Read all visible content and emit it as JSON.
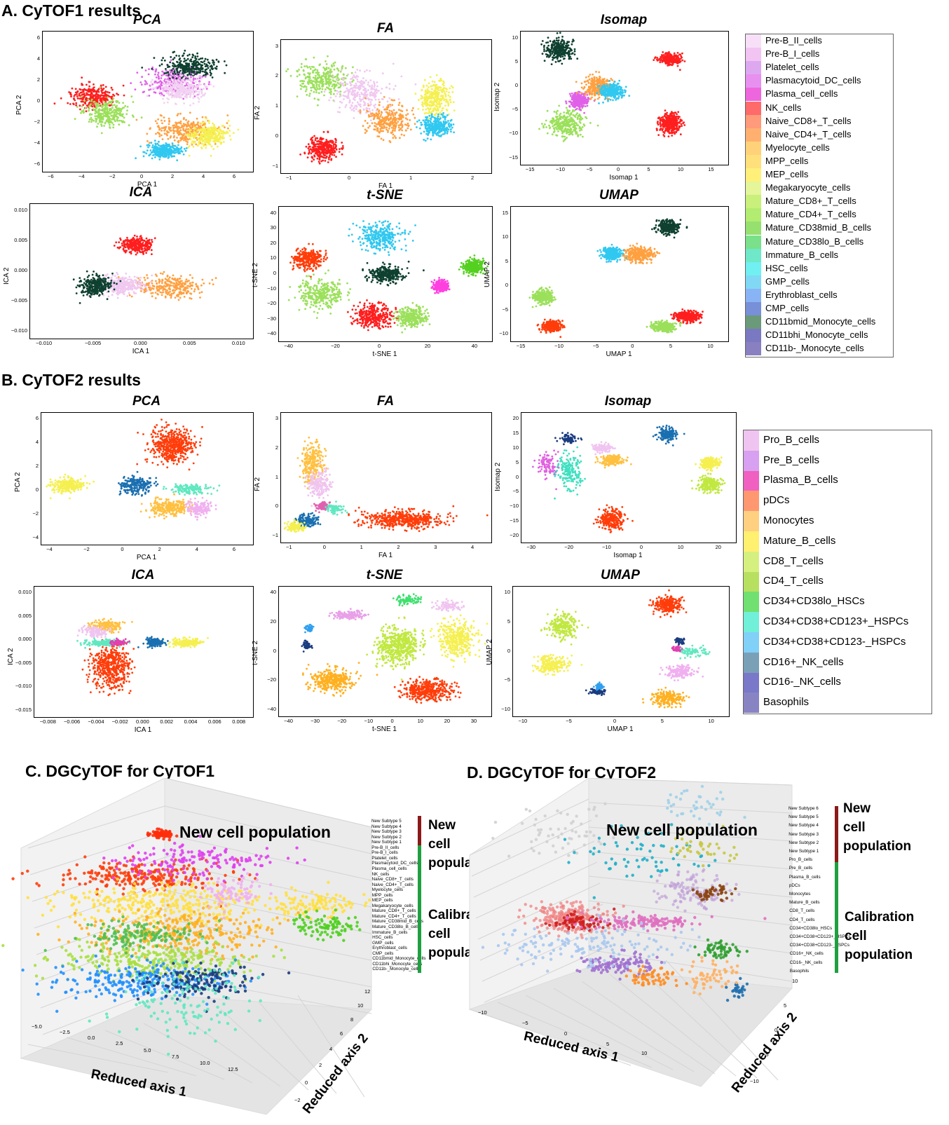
{
  "sections": {
    "a": "A. CyTOF1 results",
    "b": "B. CyTOF2 results",
    "c": "C. DGCyTOF for CyTOF1",
    "d": "D. DGCyTOF for CyTOF2"
  },
  "legend1": {
    "items": [
      "Pre-B_II_cells",
      "Pre-B_I_cells",
      "Platelet_cells",
      "Plasmacytoid_DC_cells",
      "Plasma_cell_cells",
      "NK_cells",
      "Naive_CD8+_T_cells",
      "Naive_CD4+_T_cells",
      "Myelocyte_cells",
      "MPP_cells",
      "MEP_cells",
      "Megakaryocyte_cells",
      "Mature_CD8+_T_cells",
      "Mature_CD4+_T_cells",
      "Mature_CD38mid_B_cells",
      "Mature_CD38lo_B_cells",
      "Immature_B_cells",
      "HSC_cells",
      "GMP_cells",
      "Erythroblast_cells",
      "CMP_cells",
      "CD11bmid_Monocyte_cells",
      "CD11bhi_Monocyte_cells",
      "CD11b-_Monocyte_cells"
    ],
    "colors": [
      "#f7e0f7",
      "#f2c4f2",
      "#dda8f0",
      "#e890f0",
      "#ee66dd",
      "#ff6a6a",
      "#ff9a7a",
      "#ffb070",
      "#ffd27a",
      "#ffe07a",
      "#fff07a",
      "#e4f59a",
      "#c8f07a",
      "#b2ec70",
      "#96e070",
      "#7ae08a",
      "#6ee8c8",
      "#70f0f0",
      "#80d8f5",
      "#88b4f5",
      "#7890d8",
      "#6a9a7a",
      "#7a78c0",
      "#8880c0"
    ]
  },
  "legend2": {
    "items": [
      "Pro_B_cells",
      "Pre_B_cells",
      "Plasma_B_cells",
      "pDCs",
      "Monocytes",
      "Mature_B_cells",
      "CD8_T_cells",
      "CD4_T_cells",
      "CD34+CD38lo_HSCs",
      "CD34+CD38+CD123+_HSPCs",
      "CD34+CD38+CD123-_HSPCs",
      "CD16+_NK_cells",
      "CD16-_NK_cells",
      "Basophils"
    ],
    "colors": [
      "#f0c4f0",
      "#d8a0f0",
      "#f060c0",
      "#ff9870",
      "#ffd080",
      "#fff070",
      "#d6f080",
      "#b8e060",
      "#70e070",
      "#70f0d8",
      "#80d0f8",
      "#7aa0b8",
      "#7a78c8",
      "#8884c4"
    ]
  },
  "panelsA": [
    {
      "title": "PCA",
      "xlabel": "PCA 1",
      "ylabel": "PCA 2",
      "xticks": [
        "−6",
        "−4",
        "−2",
        "0",
        "2",
        "4",
        "6"
      ],
      "yticks": [
        "6",
        "4",
        "2",
        "0",
        "−2",
        "−4",
        "−6"
      ]
    },
    {
      "title": "FA",
      "xlabel": "FA 1",
      "ylabel": "FA 2",
      "xticks": [
        "−1",
        "0",
        "1",
        "2"
      ],
      "yticks": [
        "3",
        "2",
        "1",
        "0",
        "−1"
      ]
    },
    {
      "title": "Isomap",
      "xlabel": "Isomap 1",
      "ylabel": "Isomap 2",
      "xticks": [
        "−15",
        "−10",
        "−5",
        "0",
        "5",
        "10",
        "15"
      ],
      "yticks": [
        "10",
        "5",
        "0",
        "−5",
        "−10",
        "−15"
      ]
    },
    {
      "title": "ICA",
      "xlabel": "ICA 1",
      "ylabel": "ICA 2",
      "xticks": [
        "−0.010",
        "−0.005",
        "0.000",
        "0.005",
        "0.010"
      ],
      "yticks": [
        "0.010",
        "0.005",
        "0.000",
        "−0.005",
        "−0.010"
      ]
    },
    {
      "title": "t-SNE",
      "xlabel": "t-SNE 1",
      "ylabel": "t-SNE 2",
      "xticks": [
        "−40",
        "−20",
        "0",
        "20",
        "40"
      ],
      "yticks": [
        "40",
        "30",
        "20",
        "10",
        "0",
        "−10",
        "−20",
        "−30",
        "−40"
      ]
    },
    {
      "title": "UMAP",
      "xlabel": "UMAP 1",
      "ylabel": "UMAP 2",
      "xticks": [
        "−15",
        "−10",
        "−5",
        "0",
        "5",
        "10"
      ],
      "yticks": [
        "15",
        "10",
        "5",
        "0",
        "−5",
        "−10"
      ]
    }
  ],
  "panelsB": [
    {
      "title": "PCA",
      "xlabel": "PCA 1",
      "ylabel": "PCA 2",
      "xticks": [
        "−4",
        "−2",
        "0",
        "2",
        "4",
        "6"
      ],
      "yticks": [
        "6",
        "4",
        "2",
        "0",
        "−2",
        "−4"
      ]
    },
    {
      "title": "FA",
      "xlabel": "FA 1",
      "ylabel": "FA 2",
      "xticks": [
        "−1",
        "0",
        "1",
        "2",
        "3",
        "4"
      ],
      "yticks": [
        "3",
        "2",
        "1",
        "0",
        "−1"
      ]
    },
    {
      "title": "Isomap",
      "xlabel": "Isomap 1",
      "ylabel": "Isomap 2",
      "xticks": [
        "−30",
        "−20",
        "−10",
        "0",
        "10",
        "20"
      ],
      "yticks": [
        "20",
        "15",
        "10",
        "5",
        "0",
        "−5",
        "−10",
        "−15",
        "−20"
      ]
    },
    {
      "title": "ICA",
      "xlabel": "ICA 1",
      "ylabel": "ICA 2",
      "xticks": [
        "−0.008",
        "−0.006",
        "−0.004",
        "−0.002",
        "0.000",
        "0.002",
        "0.004",
        "0.006",
        "0.008"
      ],
      "yticks": [
        "0.010",
        "0.005",
        "0.000",
        "−0.005",
        "−0.010",
        "−0.015"
      ]
    },
    {
      "title": "t-SNE",
      "xlabel": "t-SNE 1",
      "ylabel": "t-SNE 2",
      "xticks": [
        "−40",
        "−30",
        "−20",
        "−10",
        "0",
        "10",
        "20",
        "30"
      ],
      "yticks": [
        "40",
        "20",
        "0",
        "−20",
        "−40"
      ]
    },
    {
      "title": "UMAP",
      "xlabel": "UMAP 1",
      "ylabel": "UMAP 2",
      "xticks": [
        "−10",
        "−5",
        "0",
        "5",
        "10"
      ],
      "yticks": [
        "10",
        "5",
        "0",
        "−5",
        "−10"
      ]
    }
  ],
  "panelC": {
    "new_pop": "New cell population",
    "xlabel": "Reduced axis 1",
    "ylabel": "Reduced axis 2",
    "xticks": [
      "−5.0",
      "−2.5",
      "0.0",
      "2.5",
      "5.0",
      "7.5",
      "10.0",
      "12.5"
    ],
    "yticks": [
      "12",
      "10",
      "8",
      "6",
      "4",
      "2",
      "0",
      "−2"
    ],
    "side_new": [
      "New",
      "cell",
      "population"
    ],
    "side_cal": [
      "Calibration",
      "cell",
      "population"
    ],
    "labels": [
      "New Subtype 5",
      "New Subtype 4",
      "New Subtype 3",
      "New Subtype 2",
      "New Subtype 1",
      "Pre-B_II_cells",
      "Pre-B_I_cells",
      "Platelet_cells",
      "Plasmacytoid_DC_cells",
      "Plasma_cell_cells",
      "NK_cells",
      "Naive_CD8+_T_cells",
      "Naive_CD4+_T_cells",
      "Myelocyte_cells",
      "MPP_cells",
      "MEP_cells",
      "Megakaryocyte_cells",
      "Mature_CD8+_T_cells",
      "Mature_CD4+_T_cells",
      "Mature_CD38mid_B_cells",
      "Mature_CD38lo_B_cells",
      "Immature_B_cells",
      "HSC_cells",
      "GMP_cells",
      "Erythroblast_cells",
      "CMP_cells",
      "CD11bmid_Monocyte_cells",
      "CD11bhi_Monocyte_cells",
      "CD11b-_Monocyte_cells"
    ]
  },
  "panelD": {
    "new_pop": "New cell population",
    "xlabel": "Reduced axis 1",
    "ylabel": "Reduced axis 2",
    "xticks": [
      "−10",
      "−5",
      "0",
      "5",
      "10"
    ],
    "yticks": [
      "10",
      "5",
      "0",
      "−5",
      "−10"
    ],
    "side_new": [
      "New",
      "cell",
      "population"
    ],
    "side_cal": [
      "Calibration",
      "cell",
      "population"
    ],
    "labels": [
      "New Subtype 6",
      "New Subtype 5",
      "New Subtype 4",
      "New Subtype 3",
      "New Subtype 2",
      "New Subtype 1",
      "Pro_B_cells",
      "Pre_B_cells",
      "Plasma_B_cells",
      "pDCs",
      "Monocytes",
      "Mature_B_cells",
      "CD8_T_cells",
      "CD4_T_cells",
      "CD34+CD38lo_HSCs",
      "CD34+CD38+CD123+_HSPCs",
      "CD34+CD38+CD123-_HSPCs",
      "CD16+_NK_cells",
      "CD16-_NK_cells",
      "Basophils"
    ]
  },
  "chart_data": [
    {
      "type": "scatter",
      "title": "PCA",
      "xlabel": "PCA 1",
      "ylabel": "PCA 2",
      "xlim": [
        -6,
        6.5
      ],
      "ylim": [
        -6.5,
        7
      ],
      "clusters": [
        {
          "label": "NK_cells",
          "color": "#ff1e1e",
          "x": -3.0,
          "y": 0.7,
          "sx": 1.2,
          "sy": 1.0
        },
        {
          "label": "Mature_CD8+_T_cells",
          "color": "#9be05a",
          "x": -2.2,
          "y": -0.8,
          "sx": 1.2,
          "sy": 1.1
        },
        {
          "label": "Plasma_cell_cells",
          "color": "#e060e8",
          "x": 1.8,
          "y": 2.2,
          "sx": 1.6,
          "sy": 1.3
        },
        {
          "label": "CD11bmid_Monocyte_cells",
          "color": "#0f4030",
          "x": 2.8,
          "y": 3.6,
          "sx": 1.4,
          "sy": 0.9
        },
        {
          "label": "Pre-B_I_cells",
          "color": "#f2d2f2",
          "x": 2.2,
          "y": 1.5,
          "sx": 1.2,
          "sy": 1.0
        },
        {
          "label": "Naive_CD4+_T_cells",
          "color": "#ffa040",
          "x": 2.5,
          "y": -2.5,
          "sx": 1.6,
          "sy": 1.2
        },
        {
          "label": "HSC_cells",
          "color": "#30c8f0",
          "x": 1.2,
          "y": -4.5,
          "sx": 0.9,
          "sy": 0.6
        },
        {
          "label": "Myelocyte_cells",
          "color": "#f5f050",
          "x": 3.8,
          "y": -3.0,
          "sx": 1.0,
          "sy": 1.0
        }
      ]
    },
    {
      "type": "scatter",
      "title": "FA",
      "xlabel": "FA 1",
      "ylabel": "FA 2",
      "xlim": [
        -1.5,
        3
      ],
      "ylim": [
        -1.5,
        3
      ],
      "clusters": [
        {
          "label": "NK_cells",
          "color": "#ff1e1e",
          "x": -0.6,
          "y": -0.7,
          "sx": 0.3,
          "sy": 0.35
        },
        {
          "label": "Mature_CD8+_T_cells",
          "color": "#9be05a",
          "x": -0.6,
          "y": 1.7,
          "sx": 0.5,
          "sy": 0.5
        },
        {
          "label": "Pre-B_I_cells",
          "color": "#f0c8f0",
          "x": 0.2,
          "y": 1.2,
          "sx": 0.5,
          "sy": 0.6
        },
        {
          "label": "Naive_CD4+_T_cells",
          "color": "#ffa040",
          "x": 0.8,
          "y": 0.3,
          "sx": 0.4,
          "sy": 0.5
        },
        {
          "label": "Myelocyte_cells",
          "color": "#f5f050",
          "x": 1.8,
          "y": 1.0,
          "sx": 0.3,
          "sy": 0.5
        },
        {
          "label": "HSC_cells",
          "color": "#30c8f0",
          "x": 1.8,
          "y": 0.1,
          "sx": 0.3,
          "sy": 0.3
        }
      ]
    },
    {
      "type": "scatter",
      "title": "Isomap",
      "xlabel": "Isomap 1",
      "ylabel": "Isomap 2",
      "xlim": [
        -16,
        16
      ],
      "ylim": [
        -16,
        13
      ],
      "clusters": [
        {
          "label": "CD11bmid_Monocyte_cells",
          "color": "#0f4030",
          "x": -10,
          "y": 9,
          "sx": 2.0,
          "sy": 2.0
        },
        {
          "label": "Mature_CD8+_T_cells",
          "color": "#9be05a",
          "x": -9,
          "y": -7,
          "sx": 2.5,
          "sy": 2.5
        },
        {
          "label": "Plasma_cell_cells",
          "color": "#e060e8",
          "x": -7,
          "y": -2,
          "sx": 1.2,
          "sy": 1.5
        },
        {
          "label": "Naive_CD4+_T_cells",
          "color": "#ffa040",
          "x": -4,
          "y": 1,
          "sx": 2.0,
          "sy": 2.0
        },
        {
          "label": "HSC_cells",
          "color": "#30c8f0",
          "x": -2,
          "y": 0,
          "sx": 1.5,
          "sy": 1.5
        },
        {
          "label": "NK_cells",
          "color": "#ff1e1e",
          "x": 7,
          "y": 7,
          "sx": 1.5,
          "sy": 1.0
        },
        {
          "label": "NK_cells",
          "color": "#ff1e1e",
          "x": 7,
          "y": -7,
          "sx": 1.5,
          "sy": 2.0
        }
      ]
    },
    {
      "type": "scatter",
      "title": "ICA",
      "xlabel": "ICA 1",
      "ylabel": "ICA 2",
      "xlim": [
        -0.013,
        0.011
      ],
      "ylim": [
        -0.012,
        0.011
      ],
      "clusters": [
        {
          "label": "NK_cells",
          "color": "#ff1e1e",
          "x": -0.0015,
          "y": 0.004,
          "sx": 0.0015,
          "sy": 0.0012
        },
        {
          "label": "Naive_CD4+_T_cells",
          "color": "#ffa040",
          "x": 0.002,
          "y": -0.003,
          "sx": 0.003,
          "sy": 0.0018
        },
        {
          "label": "Pre-B_I_cells",
          "color": "#f0c8f0",
          "x": -0.003,
          "y": -0.003,
          "sx": 0.002,
          "sy": 0.0015
        },
        {
          "label": "CD11bmid_Monocyte_cells",
          "color": "#0f4030",
          "x": -0.006,
          "y": -0.003,
          "sx": 0.0015,
          "sy": 0.0015
        }
      ]
    },
    {
      "type": "scatter",
      "title": "t-SNE",
      "xlabel": "t-SNE 1",
      "ylabel": "t-SNE 2",
      "xlim": [
        -45,
        50
      ],
      "ylim": [
        -42,
        48
      ],
      "clusters": [
        {
          "label": "NK_cells",
          "color": "#ff3d0a",
          "x": -32,
          "y": 13,
          "sx": 6,
          "sy": 6
        },
        {
          "label": "Mature_CD8+_T_cells",
          "color": "#9be05a",
          "x": -26,
          "y": -10,
          "sx": 9,
          "sy": 9
        },
        {
          "label": "HSC_cells",
          "color": "#30c8f0",
          "x": 0,
          "y": 28,
          "sx": 9,
          "sy": 8
        },
        {
          "label": "CD11bmid_Monocyte_cells",
          "color": "#0f4030",
          "x": 3,
          "y": 3,
          "sx": 7,
          "sy": 5
        },
        {
          "label": "NK_cells",
          "color": "#ff1e1e",
          "x": -3,
          "y": -25,
          "sx": 8,
          "sy": 7
        },
        {
          "label": "Mature_CD4+_T_cells",
          "color": "#9be05a",
          "x": 14,
          "y": -26,
          "sx": 6,
          "sy": 6
        },
        {
          "label": "Plasma_cell_cells",
          "color": "#ff40e0",
          "x": 27,
          "y": -5,
          "sx": 3,
          "sy": 3
        },
        {
          "label": "Mature_CD38lo_B_cells",
          "color": "#55d020",
          "x": 42,
          "y": 8,
          "sx": 4,
          "sy": 4
        }
      ]
    },
    {
      "type": "scatter",
      "title": "UMAP",
      "xlabel": "UMAP 1",
      "ylabel": "UMAP 2",
      "xlim": [
        -16,
        11
      ],
      "ylim": [
        -11,
        16
      ],
      "clusters": [
        {
          "label": "CD11bmid_Monocyte_cells",
          "color": "#0f4030",
          "x": 3.5,
          "y": 12,
          "sx": 1.2,
          "sy": 1.2
        },
        {
          "label": "Naive_CD4+_T_cells",
          "color": "#ffa040",
          "x": 0,
          "y": 6.5,
          "sx": 1.8,
          "sy": 1.3
        },
        {
          "label": "HSC_cells",
          "color": "#30c8f0",
          "x": -3.5,
          "y": 6.5,
          "sx": 1.0,
          "sy": 1.2
        },
        {
          "label": "Mature_CD8+_T_cells",
          "color": "#9be05a",
          "x": -12,
          "y": -2,
          "sx": 1.0,
          "sy": 1.2
        },
        {
          "label": "NK_cells",
          "color": "#ff3d0a",
          "x": -11,
          "y": -8,
          "sx": 1.1,
          "sy": 0.9
        },
        {
          "label": "NK_cells",
          "color": "#ff1e1e",
          "x": 6,
          "y": -6,
          "sx": 1.4,
          "sy": 1.0
        },
        {
          "label": "Mature_CD4+_T_cells",
          "color": "#9be05a",
          "x": 3,
          "y": -8,
          "sx": 1.3,
          "sy": 0.9
        }
      ]
    }
  ]
}
